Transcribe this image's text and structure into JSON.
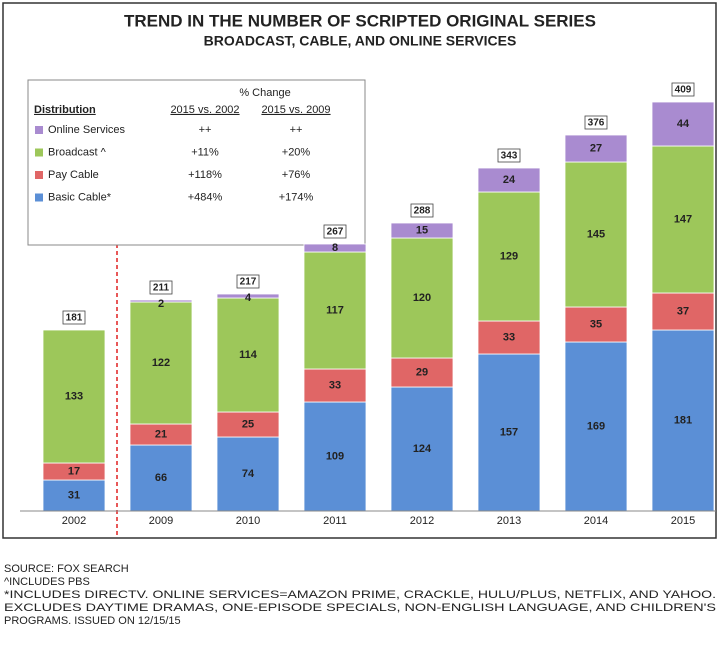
{
  "chart_data": {
    "type": "stacked_bar",
    "title": "TREND IN THE NUMBER OF SCRIPTED ORIGINAL SERIES",
    "subtitle": "BROADCAST, CABLE, AND ONLINE SERVICES",
    "categories": [
      "2002",
      "2009",
      "2010",
      "2011",
      "2012",
      "2013",
      "2014",
      "2015"
    ],
    "series": [
      {
        "name": "Basic Cable*",
        "color": "#5b8fd6",
        "values": [
          31,
          66,
          74,
          109,
          124,
          157,
          169,
          181
        ],
        "changes": [
          "+484%",
          "+174%"
        ]
      },
      {
        "name": "Pay Cable",
        "color": "#e06666",
        "values": [
          17,
          21,
          25,
          33,
          29,
          33,
          35,
          37
        ],
        "changes": [
          "+118%",
          "+76%"
        ]
      },
      {
        "name": "Broadcast ^",
        "color": "#9dc75a",
        "values": [
          133,
          122,
          114,
          117,
          120,
          129,
          145,
          147
        ],
        "changes": [
          "+11%",
          "+20%"
        ]
      },
      {
        "name": "Online Services",
        "color": "#a98bd0",
        "values": [
          null,
          2,
          4,
          8,
          15,
          24,
          27,
          44
        ],
        "changes": [
          "++",
          "++"
        ]
      }
    ],
    "totals": [
      181,
      211,
      217,
      267,
      288,
      343,
      376,
      409
    ],
    "legend_table": {
      "title": "% Change",
      "header": "Distribution",
      "columns": [
        "2015 vs. 2002",
        "2015 vs. 2009"
      ]
    },
    "notes": [
      "SOURCE: FOX SEARCH",
      "^INCLUDES PBS",
      "*INCLUDES DIRECTV. ONLINE SERVICES=AMAZON PRIME, CRACKLE, HULU/PLUS, NETFLIX, AND YAHOO.",
      "EXCLUDES DAYTIME DRAMAS, ONE-EPISODE SPECIALS, NON-ENGLISH LANGUAGE, AND CHILDREN'S",
      "PROGRAMS. ISSUED ON 12/15/15"
    ]
  }
}
